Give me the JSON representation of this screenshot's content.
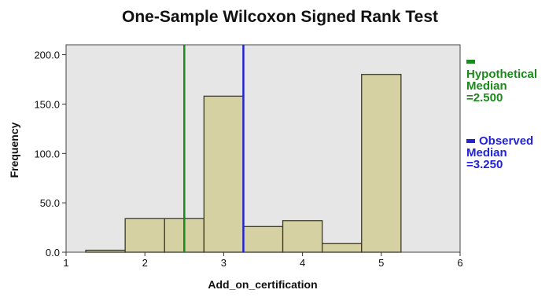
{
  "chart_data": {
    "type": "bar",
    "title": "One-Sample Wilcoxon Signed Rank Test",
    "xlabel": "Add_on_certification",
    "ylabel": "Frequency",
    "xlim": [
      1,
      6
    ],
    "ylim": [
      0,
      210
    ],
    "xticks": [
      "1",
      "2",
      "3",
      "4",
      "5",
      "6"
    ],
    "yticks": [
      "0.0",
      "50.0",
      "100.0",
      "150.0",
      "200.0"
    ],
    "bins": [
      {
        "x0": 1.25,
        "x1": 1.75,
        "value": 2
      },
      {
        "x0": 1.75,
        "x1": 2.25,
        "value": 34
      },
      {
        "x0": 2.25,
        "x1": 2.75,
        "value": 34
      },
      {
        "x0": 2.75,
        "x1": 3.25,
        "value": 158
      },
      {
        "x0": 3.25,
        "x1": 3.75,
        "value": 26
      },
      {
        "x0": 3.75,
        "x1": 4.25,
        "value": 32
      },
      {
        "x0": 4.25,
        "x1": 4.75,
        "value": 9
      },
      {
        "x0": 4.75,
        "x1": 5.25,
        "value": 180
      }
    ],
    "reference_lines": [
      {
        "x": 2.5,
        "color": "#1a8a1a",
        "label": "Hypothetical\nMedian\n=2.500"
      },
      {
        "x": 3.25,
        "color": "#2323d6",
        "label": "Observed\nMedian\n=3.250"
      }
    ],
    "grid": false,
    "legend_position": "right",
    "colors": {
      "bar_fill": "#d6d1a3",
      "bar_stroke": "#3a3a2a",
      "plot_bg": "#e6e6e6"
    }
  }
}
